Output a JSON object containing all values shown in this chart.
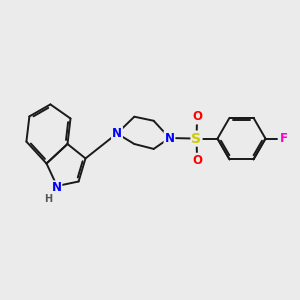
{
  "background_color": "#ebebeb",
  "bond_color": "#1a1a1a",
  "n_color": "#0000ff",
  "s_color": "#cccc00",
  "o_color": "#ff0000",
  "f_color": "#ff00cc",
  "h_color": "#555555",
  "figsize": [
    3.0,
    3.0
  ],
  "dpi": 100,
  "lw": 1.4,
  "fs": 8.5,
  "xlim": [
    0,
    10
  ],
  "ylim": [
    0,
    10
  ]
}
